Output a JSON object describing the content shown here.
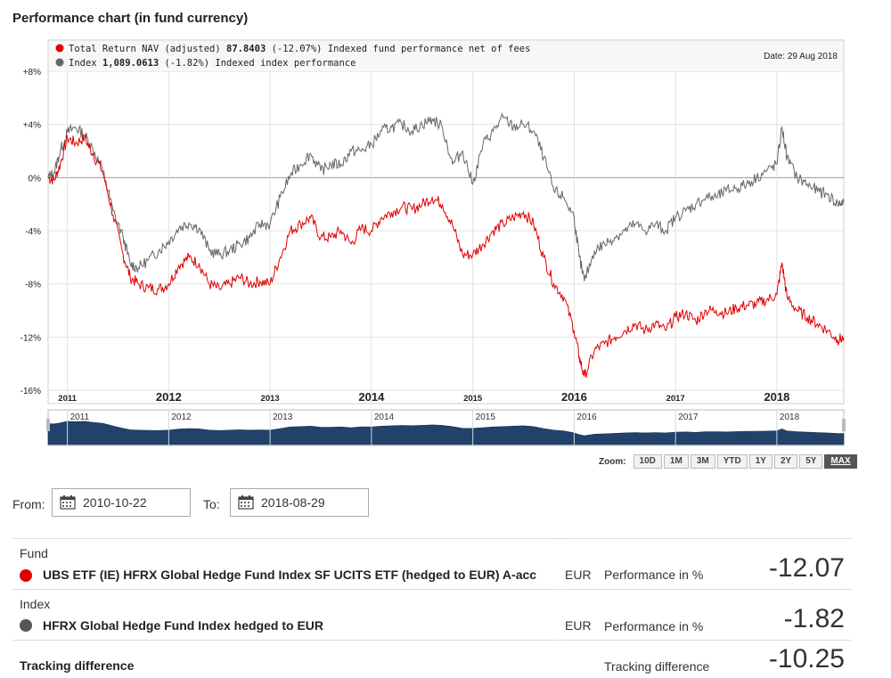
{
  "page_title": "Performance chart (in fund currency)",
  "legend": {
    "fund": {
      "label": "Total Return NAV (adjusted)",
      "value": "87.8403",
      "change": "(-12.07%)",
      "desc": "Indexed fund performance net of fees",
      "color": "#e00000"
    },
    "index": {
      "label": "Index",
      "value": "1,089.0613",
      "change": "(-1.82%)",
      "desc": "Indexed index performance",
      "color": "#666666"
    }
  },
  "date_label": "Date: 29 Aug 2018",
  "zoom": {
    "label": "Zoom:",
    "buttons": [
      "10D",
      "1M",
      "3M",
      "YTD",
      "1Y",
      "2Y",
      "5Y",
      "MAX"
    ],
    "active": "MAX"
  },
  "from": {
    "label": "From:",
    "value": "2010-10-22"
  },
  "to": {
    "label": "To:",
    "value": "2018-08-29"
  },
  "summary": {
    "fund": {
      "category": "Fund",
      "name": "UBS ETF (IE) HFRX Global Hedge Fund Index SF UCITS ETF (hedged to EUR) A-acc",
      "currency": "EUR",
      "perf_label": "Performance in %",
      "value": "-12.07",
      "color": "#e00000"
    },
    "index": {
      "category": "Index",
      "name": "HFRX Global Hedge Fund Index hedged to EUR",
      "currency": "EUR",
      "perf_label": "Performance in %",
      "value": "-1.82",
      "color": "#555555"
    },
    "tracking": {
      "category": "Tracking difference",
      "perf_label": "Tracking difference",
      "value": "-10.25"
    }
  },
  "chart_data": {
    "type": "line",
    "ylim": [
      -16,
      8
    ],
    "y_ticks": [
      8,
      4,
      0,
      -4,
      -8,
      -12,
      -16
    ],
    "y_tick_labels": [
      "+8%",
      "+4%",
      "0%",
      "-4%",
      "-8%",
      "-12%",
      "-16%"
    ],
    "xlim": [
      2010.81,
      2018.66
    ],
    "x_ticks": [
      {
        "label": "2011",
        "x": 2011.0,
        "major": false
      },
      {
        "label": "2012",
        "x": 2012.0,
        "major": true
      },
      {
        "label": "2013",
        "x": 2013.0,
        "major": false
      },
      {
        "label": "2014",
        "x": 2014.0,
        "major": true
      },
      {
        "label": "2015",
        "x": 2015.0,
        "major": false
      },
      {
        "label": "2016",
        "x": 2016.0,
        "major": true
      },
      {
        "label": "2017",
        "x": 2017.0,
        "major": false
      },
      {
        "label": "2018",
        "x": 2018.0,
        "major": true
      }
    ],
    "navigator_labels": [
      "2011",
      "2012",
      "2013",
      "2014",
      "2015",
      "2016",
      "2017",
      "2018"
    ],
    "series": [
      {
        "name": "Total Return NAV (adjusted)",
        "color": "#e00000",
        "x": [
          2010.81,
          2010.87,
          2010.93,
          2011.0,
          2011.08,
          2011.17,
          2011.25,
          2011.35,
          2011.45,
          2011.55,
          2011.62,
          2011.7,
          2011.8,
          2011.9,
          2012.0,
          2012.1,
          2012.2,
          2012.3,
          2012.4,
          2012.5,
          2012.6,
          2012.7,
          2012.8,
          2012.9,
          2013.0,
          2013.1,
          2013.2,
          2013.3,
          2013.4,
          2013.5,
          2013.6,
          2013.7,
          2013.8,
          2013.9,
          2014.0,
          2014.1,
          2014.2,
          2014.3,
          2014.4,
          2014.5,
          2014.6,
          2014.7,
          2014.8,
          2014.9,
          2015.0,
          2015.1,
          2015.2,
          2015.3,
          2015.4,
          2015.5,
          2015.6,
          2015.7,
          2015.8,
          2015.9,
          2016.0,
          2016.05,
          2016.1,
          2016.2,
          2016.3,
          2016.4,
          2016.5,
          2016.6,
          2016.7,
          2016.8,
          2016.9,
          2017.0,
          2017.1,
          2017.2,
          2017.3,
          2017.4,
          2017.5,
          2017.6,
          2017.7,
          2017.8,
          2017.9,
          2018.0,
          2018.05,
          2018.1,
          2018.2,
          2018.3,
          2018.4,
          2018.5,
          2018.6,
          2018.66
        ],
        "y": [
          0.0,
          -0.2,
          1.0,
          3.0,
          2.6,
          3.0,
          1.8,
          0.4,
          -2.8,
          -5.8,
          -7.5,
          -8.0,
          -8.3,
          -8.4,
          -8.0,
          -6.6,
          -6.0,
          -6.5,
          -8.0,
          -8.4,
          -8.0,
          -7.5,
          -8.0,
          -7.8,
          -8.0,
          -6.0,
          -4.0,
          -3.5,
          -3.0,
          -4.5,
          -4.5,
          -4.0,
          -5.0,
          -3.8,
          -4.0,
          -3.0,
          -2.6,
          -2.2,
          -2.4,
          -2.0,
          -1.5,
          -2.0,
          -3.6,
          -5.8,
          -5.8,
          -5.0,
          -4.0,
          -3.5,
          -3.0,
          -2.6,
          -3.5,
          -6.0,
          -8.0,
          -9.0,
          -11.5,
          -13.5,
          -15.0,
          -13.0,
          -12.5,
          -12.0,
          -11.5,
          -11.0,
          -11.5,
          -11.0,
          -11.5,
          -10.5,
          -10.2,
          -10.8,
          -10.0,
          -10.0,
          -10.2,
          -9.8,
          -9.6,
          -9.5,
          -9.2,
          -8.8,
          -6.4,
          -9.0,
          -10.0,
          -10.5,
          -11.0,
          -11.5,
          -12.2,
          -12.07
        ]
      },
      {
        "name": "Index",
        "color": "#666666",
        "x": [
          2010.81,
          2010.87,
          2010.93,
          2011.0,
          2011.08,
          2011.17,
          2011.25,
          2011.35,
          2011.45,
          2011.55,
          2011.62,
          2011.7,
          2011.8,
          2011.9,
          2012.0,
          2012.1,
          2012.2,
          2012.3,
          2012.4,
          2012.5,
          2012.6,
          2012.7,
          2012.8,
          2012.9,
          2013.0,
          2013.1,
          2013.2,
          2013.3,
          2013.4,
          2013.5,
          2013.6,
          2013.7,
          2013.8,
          2013.9,
          2014.0,
          2014.1,
          2014.2,
          2014.3,
          2014.4,
          2014.5,
          2014.6,
          2014.7,
          2014.8,
          2014.9,
          2015.0,
          2015.1,
          2015.2,
          2015.3,
          2015.4,
          2015.5,
          2015.6,
          2015.7,
          2015.8,
          2015.9,
          2016.0,
          2016.05,
          2016.1,
          2016.2,
          2016.3,
          2016.4,
          2016.5,
          2016.6,
          2016.7,
          2016.8,
          2016.9,
          2017.0,
          2017.1,
          2017.2,
          2017.3,
          2017.4,
          2017.5,
          2017.6,
          2017.7,
          2017.8,
          2017.9,
          2018.0,
          2018.05,
          2018.1,
          2018.2,
          2018.3,
          2018.4,
          2018.5,
          2018.6,
          2018.66
        ],
        "y": [
          0.0,
          0.4,
          2.0,
          3.4,
          3.8,
          3.2,
          2.2,
          0.5,
          -2.5,
          -4.5,
          -6.5,
          -6.8,
          -6.2,
          -5.5,
          -4.8,
          -3.8,
          -3.4,
          -3.8,
          -5.5,
          -5.8,
          -5.5,
          -5.0,
          -4.5,
          -3.5,
          -3.5,
          -1.5,
          0.2,
          1.0,
          1.8,
          0.5,
          1.0,
          1.0,
          2.0,
          2.0,
          2.5,
          3.5,
          3.8,
          4.0,
          3.5,
          4.0,
          4.4,
          3.8,
          1.0,
          2.0,
          -0.5,
          2.5,
          3.5,
          4.5,
          3.8,
          4.0,
          3.5,
          1.5,
          -1.0,
          -1.5,
          -3.0,
          -6.0,
          -7.8,
          -5.5,
          -5.0,
          -4.5,
          -4.0,
          -3.5,
          -4.0,
          -3.5,
          -4.0,
          -3.0,
          -2.5,
          -2.0,
          -1.5,
          -1.5,
          -1.0,
          -0.8,
          -0.5,
          0.0,
          0.5,
          1.0,
          3.8,
          1.5,
          0.0,
          -0.5,
          -1.0,
          -1.3,
          -2.0,
          -1.82
        ]
      }
    ]
  }
}
